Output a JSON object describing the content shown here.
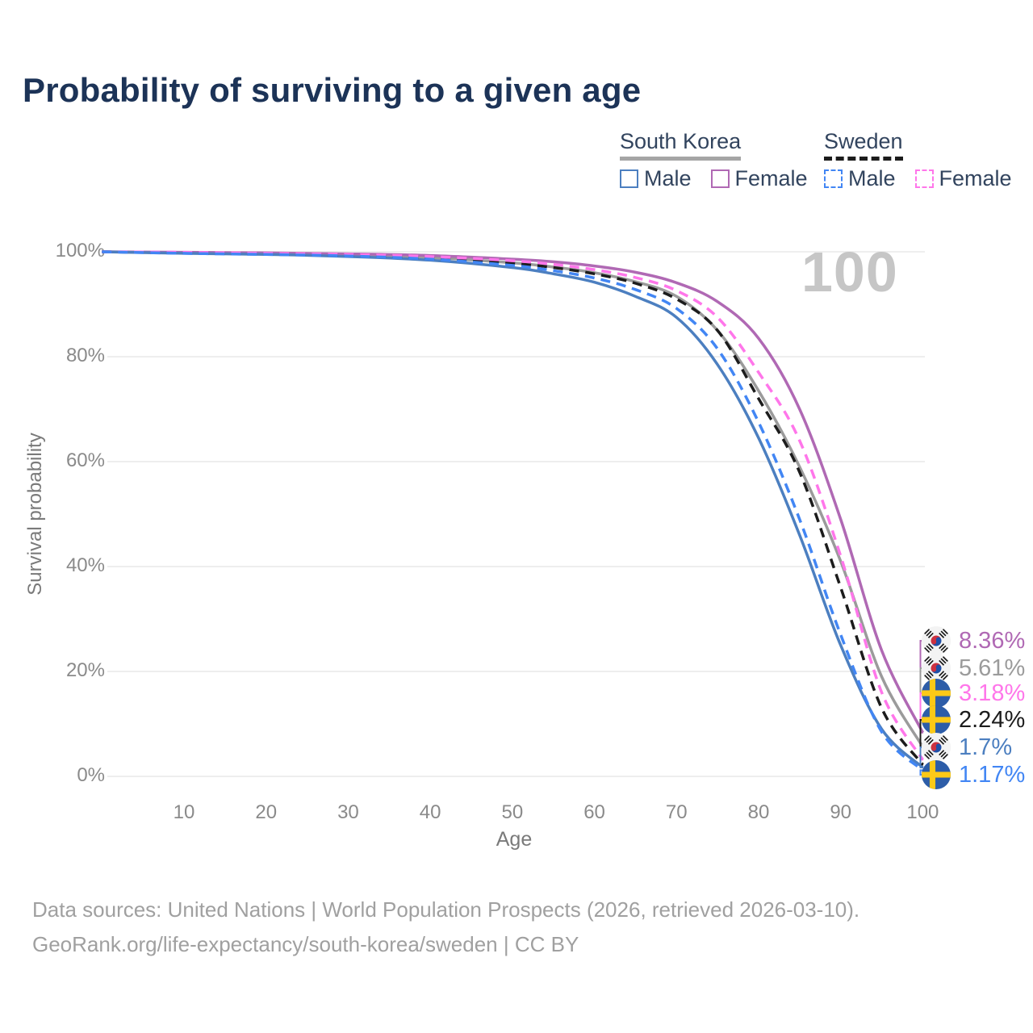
{
  "title": "Probability of surviving to a given age",
  "watermark": "100",
  "legend": {
    "groups": [
      {
        "name": "South Korea",
        "style": "solid",
        "underline_color": "#a5a5a5",
        "items": [
          {
            "label": "Male",
            "color": "#4c7fc0"
          },
          {
            "label": "Female",
            "color": "#b069b4"
          }
        ]
      },
      {
        "name": "Sweden",
        "style": "dashed",
        "underline_color": "#1c1c1c",
        "items": [
          {
            "label": "Male",
            "color": "#4286f4"
          },
          {
            "label": "Female",
            "color": "#ff76ea"
          }
        ]
      }
    ]
  },
  "chart_data": {
    "type": "line",
    "title": "Probability of surviving to a given age",
    "xlabel": "Age",
    "ylabel": "Survival probability",
    "xlim": [
      0,
      100
    ],
    "ylim": [
      0,
      100
    ],
    "grid": "horizontal",
    "x_ticks": [
      10,
      20,
      30,
      40,
      50,
      60,
      70,
      80,
      90,
      100
    ],
    "y_ticks": [
      "0%",
      "20%",
      "40%",
      "60%",
      "80%",
      "100%"
    ],
    "x": [
      0,
      10,
      20,
      30,
      40,
      50,
      55,
      60,
      65,
      70,
      75,
      80,
      85,
      90,
      95,
      100
    ],
    "series": [
      {
        "id": "south-korea-total",
        "name": "South Korea (both sexes)",
        "country": "South Korea",
        "sex": "Both",
        "color": "#9b9b9b",
        "dash": "solid",
        "values": [
          100,
          99.8,
          99.6,
          99.3,
          98.9,
          97.9,
          97.1,
          96.0,
          94.3,
          91.5,
          85.0,
          73.5,
          59.0,
          41.0,
          19.0,
          5.61
        ]
      },
      {
        "id": "south-korea-female",
        "name": "South Korea Female",
        "country": "South Korea",
        "sex": "Female",
        "color": "#b069b4",
        "dash": "solid",
        "values": [
          100,
          99.9,
          99.8,
          99.6,
          99.3,
          98.6,
          98.1,
          97.3,
          96.1,
          94.1,
          90.5,
          83.5,
          70.0,
          49.0,
          24.0,
          8.36
        ]
      },
      {
        "id": "south-korea-male",
        "name": "South Korea Male",
        "country": "South Korea",
        "sex": "Male",
        "color": "#4c7fc0",
        "dash": "solid",
        "values": [
          100,
          99.7,
          99.5,
          99.1,
          98.4,
          97.0,
          95.8,
          94.2,
          91.5,
          87.5,
          78.5,
          64.5,
          46.0,
          25.0,
          9.0,
          1.7
        ]
      },
      {
        "id": "sweden-total",
        "name": "Sweden (both sexes)",
        "country": "Sweden",
        "sex": "Both",
        "color": "#1c1c1c",
        "dash": "dashed",
        "values": [
          100,
          99.8,
          99.6,
          99.3,
          98.8,
          97.8,
          97.0,
          95.8,
          94.0,
          91.0,
          85.0,
          72.0,
          58.0,
          36.0,
          13.0,
          2.24
        ]
      },
      {
        "id": "sweden-female",
        "name": "Sweden Female",
        "country": "Sweden",
        "sex": "Female",
        "color": "#ff76ea",
        "dash": "dashed",
        "values": [
          100,
          99.9,
          99.7,
          99.5,
          99.1,
          98.3,
          97.6,
          96.6,
          95.1,
          92.6,
          87.5,
          77.0,
          64.0,
          42.0,
          16.0,
          3.18
        ]
      },
      {
        "id": "sweden-male",
        "name": "Sweden Male",
        "country": "Sweden",
        "sex": "Male",
        "color": "#4286f4",
        "dash": "dashed",
        "values": [
          100,
          99.7,
          99.5,
          99.2,
          98.6,
          97.4,
          96.4,
          95.0,
          92.8,
          89.2,
          81.5,
          67.5,
          49.0,
          27.0,
          8.5,
          1.17
        ]
      }
    ]
  },
  "end_labels": [
    {
      "series": 1,
      "flag": "south-korea",
      "value": "8.36%"
    },
    {
      "series": 0,
      "flag": "south-korea",
      "value": "5.61%"
    },
    {
      "series": 4,
      "flag": "sweden",
      "value": "3.18%"
    },
    {
      "series": 3,
      "flag": "sweden",
      "value": "2.24%"
    },
    {
      "series": 2,
      "flag": "south-korea",
      "value": "1.7%"
    },
    {
      "series": 5,
      "flag": "sweden",
      "value": "1.17%"
    }
  ],
  "footer": {
    "line1": "Data sources: United Nations | World Population Prospects (2026, retrieved 2026-03-10).",
    "line2": "GeoRank.org/life-expectancy/south-korea/sweden | CC BY"
  }
}
